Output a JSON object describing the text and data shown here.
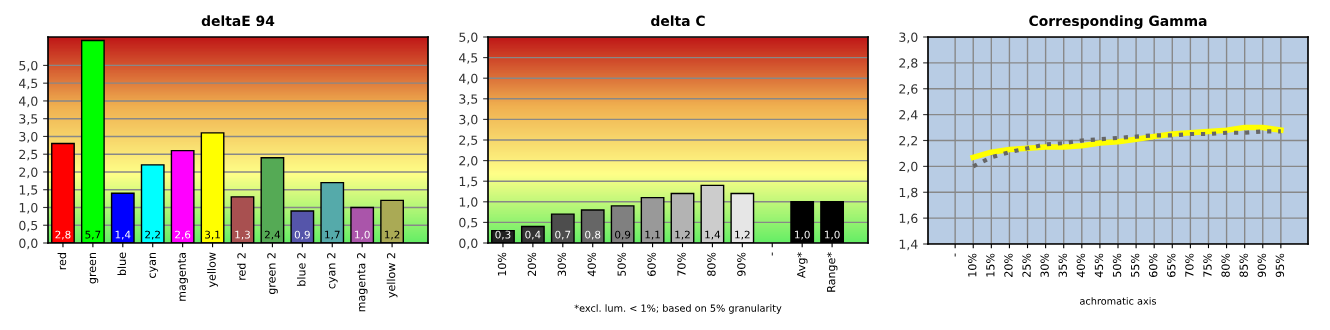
{
  "chart_data": [
    {
      "type": "bar",
      "title": "deltaE 94",
      "categories": [
        "red",
        "green",
        "blue",
        "cyan",
        "magenta",
        "yellow",
        "red 2",
        "green 2",
        "blue 2",
        "cyan 2",
        "magenta 2",
        "yellow 2"
      ],
      "values": [
        2.8,
        5.7,
        1.4,
        2.2,
        2.6,
        3.1,
        1.3,
        2.4,
        0.9,
        1.7,
        1.0,
        1.2
      ],
      "value_labels": [
        "2,8",
        "5,7",
        "1,4",
        "2,2",
        "2,6",
        "3,1",
        "1,3",
        "2,4",
        "0,9",
        "1,7",
        "1,0",
        "1,2"
      ],
      "colors": [
        "#ff0000",
        "#00ff00",
        "#0000ff",
        "#00ffff",
        "#ff00ff",
        "#ffff00",
        "#a85050",
        "#55aa55",
        "#5555aa",
        "#55aaaa",
        "#aa55aa",
        "#aaaa55"
      ],
      "ylim": [
        0,
        5.8
      ],
      "yticks": [
        {
          "value": 0,
          "label": "0,0"
        },
        {
          "value": 0.5,
          "label": "0,5"
        },
        {
          "value": 1,
          "label": "1,0"
        },
        {
          "value": 1.5,
          "label": "1,5"
        },
        {
          "value": 2,
          "label": "2,0"
        },
        {
          "value": 2.5,
          "label": "2,5"
        },
        {
          "value": 3,
          "label": "3,0"
        },
        {
          "value": 3.5,
          "label": "3,5"
        },
        {
          "value": 4,
          "label": "4,0"
        },
        {
          "value": 4.5,
          "label": "4,5"
        },
        {
          "value": 5,
          "label": "5,0"
        }
      ],
      "grid": "y",
      "legend": false
    },
    {
      "type": "bar",
      "title": "delta C",
      "categories": [
        "10%",
        "20%",
        "30%",
        "40%",
        "50%",
        "60%",
        "70%",
        "80%",
        "90%",
        "-",
        "Avg*",
        "Range*"
      ],
      "values": [
        0.3,
        0.4,
        0.7,
        0.8,
        0.9,
        1.1,
        1.2,
        1.4,
        1.2,
        null,
        1.0,
        1.0
      ],
      "value_labels": [
        "0,3",
        "0,4",
        "0,7",
        "0,8",
        "0,9",
        "1,1",
        "1,2",
        "1,4",
        "1,2",
        null,
        "1,0",
        "1,0"
      ],
      "colors": [
        "#202020",
        "#333333",
        "#4d4d4d",
        "#666666",
        "#808080",
        "#999999",
        "#b3b3b3",
        "#cccccc",
        "#e6e6e6",
        "#ffffff",
        "#000000",
        "#000000"
      ],
      "ylim": [
        0,
        5
      ],
      "yticks": [
        {
          "value": 0,
          "label": "0,0"
        },
        {
          "value": 0.5,
          "label": "0,5"
        },
        {
          "value": 1,
          "label": "1,0"
        },
        {
          "value": 1.5,
          "label": "1,5"
        },
        {
          "value": 2,
          "label": "2,0"
        },
        {
          "value": 2.5,
          "label": "2,5"
        },
        {
          "value": 3,
          "label": "3,0"
        },
        {
          "value": 3.5,
          "label": "3,5"
        },
        {
          "value": 4,
          "label": "4,0"
        },
        {
          "value": 4.5,
          "label": "4,5"
        },
        {
          "value": 5,
          "label": "5,0"
        }
      ],
      "annotations": [
        "*excl. lum. < 1%; based on 5% granularity"
      ],
      "grid": "y",
      "legend": false
    },
    {
      "type": "line",
      "title": "Corresponding Gamma",
      "xlabel": "achromatic axis",
      "categories": [
        "-",
        "10%",
        "15%",
        "20%",
        "25%",
        "30%",
        "35%",
        "40%",
        "45%",
        "50%",
        "55%",
        "60%",
        "65%",
        "70%",
        "75%",
        "80%",
        "85%",
        "90%",
        "95%"
      ],
      "series": [
        {
          "color": "#ffff00",
          "line_style": "solid",
          "values": [
            null,
            2.07,
            2.11,
            2.13,
            2.14,
            2.15,
            2.15,
            2.16,
            2.18,
            2.19,
            2.21,
            2.23,
            2.25,
            2.26,
            2.27,
            2.28,
            2.3,
            2.3,
            2.28
          ]
        },
        {
          "color": "#666666",
          "line_style": "dotted",
          "values": [
            null,
            2.0,
            2.07,
            2.11,
            2.14,
            2.17,
            2.18,
            2.2,
            2.21,
            2.22,
            2.23,
            2.24,
            2.24,
            2.25,
            2.25,
            2.26,
            2.26,
            2.27,
            2.27
          ]
        }
      ],
      "ylim": [
        1.4,
        3.0
      ],
      "yticks": [
        {
          "value": 1.4,
          "label": "1,4"
        },
        {
          "value": 1.6,
          "label": "1,6"
        },
        {
          "value": 1.8,
          "label": "1,8"
        },
        {
          "value": 2.0,
          "label": "2,0"
        },
        {
          "value": 2.2,
          "label": "2,2"
        },
        {
          "value": 2.4,
          "label": "2,4"
        },
        {
          "value": 2.6,
          "label": "2,6"
        },
        {
          "value": 2.8,
          "label": "2,8"
        },
        {
          "value": 3.0,
          "label": "3,0"
        }
      ],
      "grid": true,
      "legend": false
    }
  ]
}
